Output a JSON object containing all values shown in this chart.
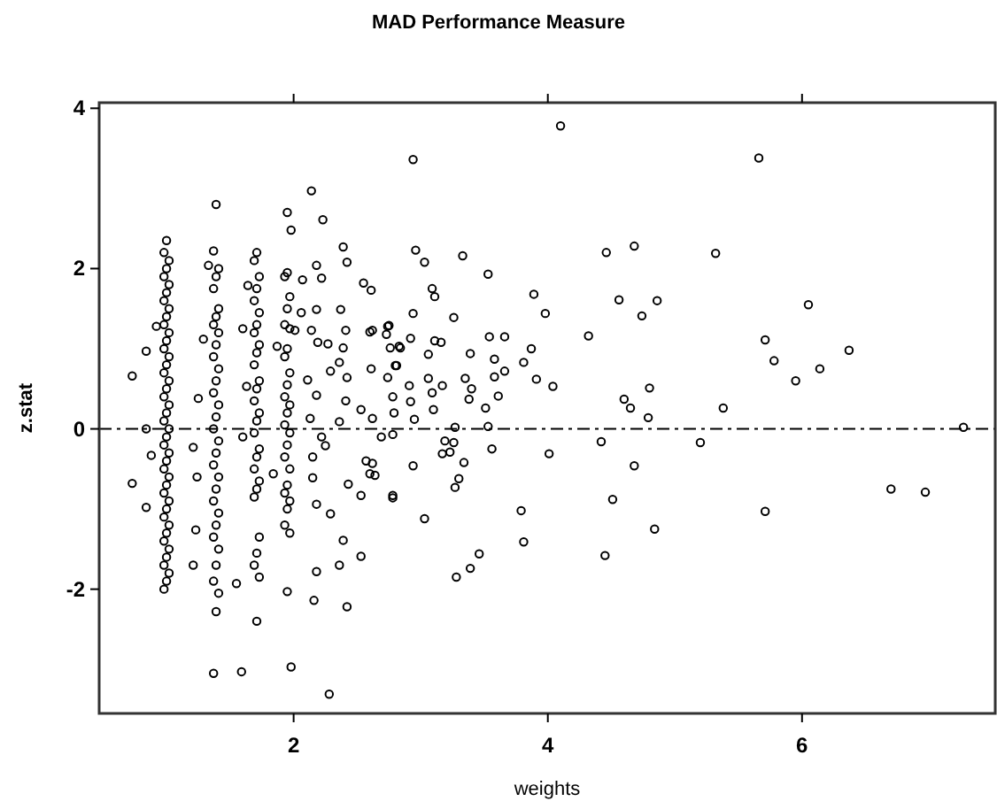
{
  "chart_data": {
    "type": "scatter",
    "title": "MAD Performance Measure",
    "xlabel": "weights",
    "ylabel": "z.stat",
    "xlim": [
      0.47,
      7.52
    ],
    "ylim": [
      -3.55,
      4.07
    ],
    "xticks": [
      2,
      4,
      6
    ],
    "yticks": [
      -2,
      0,
      2,
      4
    ],
    "grid": false,
    "marker": "circle",
    "ref_lines": [
      {
        "axis": "y",
        "value": 0,
        "color": "#000000",
        "line_style": "dashed"
      }
    ],
    "series": [
      {
        "color": "#000000",
        "x": [
          1.0,
          0.98,
          1.02,
          1.0,
          0.98,
          1.02,
          1.0,
          0.98,
          1.02,
          1.0,
          0.98,
          1.02,
          1.0,
          0.98,
          1.02,
          1.0,
          0.98,
          1.02,
          1.0,
          0.98,
          1.02,
          1.0,
          0.98,
          1.02,
          1.0,
          0.98,
          1.02,
          1.0,
          0.98,
          1.02,
          1.0,
          0.98,
          1.02,
          1.0,
          0.98,
          1.02,
          1.0,
          0.98,
          1.02,
          1.0,
          0.98,
          1.02,
          1.0,
          0.98,
          0.73,
          0.84,
          0.84,
          0.73,
          0.84,
          0.92,
          0.88,
          1.39,
          1.37,
          1.41,
          1.39,
          1.37,
          1.41,
          1.39,
          1.37,
          1.41,
          1.39,
          1.37,
          1.41,
          1.39,
          1.37,
          1.41,
          1.39,
          1.37,
          1.41,
          1.39,
          1.37,
          1.41,
          1.39,
          1.37,
          1.41,
          1.39,
          1.37,
          1.41,
          1.39,
          1.37,
          1.41,
          1.39,
          1.37,
          1.29,
          1.25,
          1.21,
          1.24,
          1.23,
          1.21,
          1.33,
          1.55,
          1.59,
          1.71,
          1.69,
          1.73,
          1.71,
          1.69,
          1.73,
          1.71,
          1.69,
          1.73,
          1.71,
          1.69,
          1.73,
          1.71,
          1.69,
          1.73,
          1.71,
          1.69,
          1.73,
          1.71,
          1.69,
          1.73,
          1.71,
          1.69,
          1.73,
          1.71,
          1.69,
          1.73,
          1.71,
          1.6,
          1.63,
          1.6,
          1.84,
          1.64,
          1.95,
          1.98,
          1.95,
          1.93,
          1.97,
          1.95,
          1.93,
          1.97,
          1.95,
          1.93,
          1.97,
          1.95,
          1.93,
          1.97,
          1.95,
          1.93,
          1.97,
          1.95,
          1.93,
          1.97,
          1.95,
          1.93,
          1.97,
          1.95,
          1.93,
          1.97,
          1.95,
          1.98,
          2.14,
          2.23,
          2.39,
          2.42,
          2.07,
          2.18,
          2.22,
          1.87,
          2.01,
          2.06,
          2.18,
          2.14,
          2.19,
          2.27,
          2.37,
          2.41,
          2.39,
          2.36,
          2.42,
          2.11,
          2.18,
          2.29,
          2.41,
          2.36,
          2.53,
          2.62,
          2.69,
          2.78,
          2.13,
          2.22,
          2.25,
          2.15,
          2.15,
          2.18,
          2.29,
          2.43,
          2.53,
          2.62,
          2.64,
          2.78,
          2.39,
          2.36,
          2.53,
          2.18,
          2.16,
          2.42,
          2.28,
          2.55,
          2.61,
          2.62,
          2.75,
          2.76,
          2.83,
          2.79,
          2.8,
          2.61,
          4.1,
          2.94,
          2.96,
          3.03,
          3.33,
          3.53,
          3.09,
          3.11,
          2.94,
          3.26,
          3.89,
          3.98,
          2.6,
          2.74,
          2.73,
          2.92,
          2.84,
          3.11,
          3.16,
          3.54,
          3.66,
          3.06,
          3.39,
          3.87,
          3.81,
          3.58,
          3.66,
          3.58,
          3.91,
          4.04,
          4.32,
          4.46,
          4.68,
          4.56,
          4.74,
          4.86,
          4.8,
          4.6,
          4.65,
          4.79,
          2.81,
          2.74,
          2.78,
          2.91,
          2.92,
          3.06,
          3.09,
          3.17,
          3.1,
          2.95,
          3.35,
          3.4,
          3.38,
          3.51,
          3.61,
          3.27,
          3.53,
          3.19,
          3.26,
          3.17,
          3.23,
          3.56,
          3.34,
          3.3,
          3.27,
          4.01,
          4.42,
          4.68,
          4.51,
          4.84,
          2.94,
          2.78,
          3.03,
          3.79,
          3.81,
          3.46,
          3.39,
          3.28,
          4.45,
          2.57,
          2.6,
          5.66,
          5.32,
          6.05,
          5.71,
          5.78,
          5.95,
          6.14,
          6.37,
          5.38,
          7.27,
          5.2,
          6.7,
          6.97,
          5.71
        ],
        "values": [
          2.35,
          2.2,
          2.1,
          2.0,
          1.9,
          1.8,
          1.7,
          1.6,
          1.5,
          1.4,
          1.3,
          1.2,
          1.1,
          1.0,
          0.9,
          0.8,
          0.7,
          0.6,
          0.5,
          0.4,
          0.3,
          0.2,
          0.1,
          0,
          -0.1,
          -0.2,
          -0.3,
          -0.4,
          -0.5,
          -0.6,
          -0.7,
          -0.8,
          -0.9,
          -1.0,
          -1.1,
          -1.2,
          -1.3,
          -1.4,
          -1.5,
          -1.6,
          -1.7,
          -1.8,
          -1.9,
          -2.0,
          0.66,
          0.97,
          0,
          -0.68,
          -0.98,
          1.28,
          -0.33,
          2.8,
          2.22,
          2.0,
          1.9,
          1.75,
          1.5,
          1.4,
          1.3,
          1.2,
          1.05,
          0.9,
          0.75,
          0.6,
          0.45,
          0.3,
          0.15,
          0,
          -0.15,
          -0.3,
          -0.45,
          -0.6,
          -0.75,
          -0.9,
          -1.05,
          -1.2,
          -1.35,
          -1.5,
          -1.7,
          -1.9,
          -2.05,
          -2.28,
          -3.05,
          1.12,
          0.38,
          -0.23,
          -0.6,
          -1.26,
          -1.7,
          2.04,
          -1.93,
          -3.03,
          2.2,
          2.1,
          1.9,
          1.75,
          1.6,
          1.45,
          1.3,
          1.2,
          1.05,
          0.95,
          0.8,
          0.6,
          0.5,
          0.35,
          0.2,
          0.1,
          -0.05,
          -0.25,
          -0.35,
          -0.5,
          -0.65,
          -0.75,
          -0.85,
          -1.35,
          -1.55,
          -1.7,
          -1.85,
          -2.4,
          1.25,
          0.53,
          -0.1,
          -0.56,
          1.79,
          2.7,
          2.48,
          1.95,
          1.9,
          1.65,
          1.5,
          1.3,
          1.25,
          1.0,
          0.9,
          0.7,
          0.55,
          0.4,
          0.3,
          0.2,
          0.05,
          -0.05,
          -0.2,
          -0.35,
          -0.5,
          -0.7,
          -0.8,
          -0.9,
          -1.0,
          -1.2,
          -1.3,
          -2.03,
          -2.97,
          2.97,
          2.61,
          2.27,
          2.08,
          1.86,
          2.04,
          1.88,
          1.03,
          1.23,
          1.45,
          1.49,
          1.23,
          1.08,
          1.06,
          1.49,
          1.23,
          1.01,
          0.83,
          0.64,
          0.61,
          0.42,
          0.72,
          0.35,
          0.09,
          0.24,
          0.13,
          -0.1,
          -0.07,
          0.13,
          -0.1,
          -0.21,
          -0.35,
          -0.61,
          -0.94,
          -1.06,
          -0.69,
          -0.83,
          -0.43,
          -0.58,
          -0.83,
          -1.39,
          -1.7,
          -1.59,
          -1.78,
          -2.14,
          -2.22,
          -3.31,
          1.82,
          1.73,
          1.23,
          1.29,
          1.01,
          1.03,
          0.2,
          0.79,
          0.75,
          3.78,
          3.36,
          2.23,
          2.08,
          2.16,
          1.93,
          1.75,
          1.65,
          1.44,
          1.39,
          1.68,
          1.44,
          1.21,
          1.28,
          1.18,
          1.13,
          1.01,
          1.1,
          1.08,
          1.15,
          1.15,
          0.93,
          0.94,
          1.0,
          0.83,
          0.87,
          0.72,
          0.65,
          0.62,
          0.53,
          1.16,
          2.2,
          2.28,
          1.61,
          1.41,
          1.6,
          0.51,
          0.37,
          0.26,
          0.14,
          0.79,
          0.64,
          0.4,
          0.54,
          0.34,
          0.63,
          0.45,
          0.54,
          0.24,
          0.12,
          0.63,
          0.5,
          0.37,
          0.26,
          0.41,
          0.02,
          0.03,
          -0.15,
          -0.17,
          -0.31,
          -0.29,
          -0.25,
          -0.42,
          -0.62,
          -0.73,
          -0.31,
          -0.16,
          -0.46,
          -0.88,
          -1.25,
          -0.46,
          -0.86,
          -1.12,
          -1.02,
          -1.41,
          -1.56,
          -1.74,
          -1.85,
          -1.58,
          -0.4,
          -0.56,
          3.38,
          2.19,
          1.55,
          1.11,
          0.85,
          0.6,
          0.75,
          0.98,
          0.26,
          0.02,
          -0.17,
          -0.75,
          -0.79,
          -1.03
        ]
      }
    ]
  }
}
